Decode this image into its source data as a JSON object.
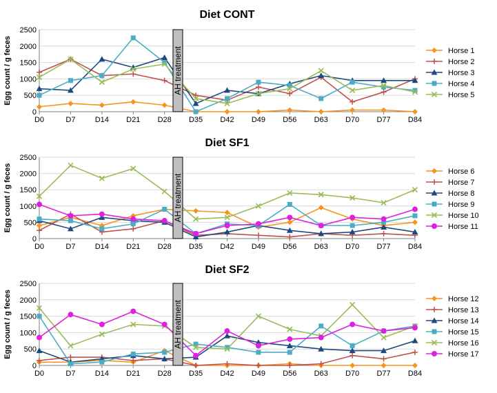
{
  "figure": {
    "treatment_label": "AH treatment",
    "ylabel": "Egg count / g feces"
  },
  "chart_data": [
    {
      "type": "line",
      "title": "Diet CONT",
      "ylabel": "Egg count / g feces",
      "categories": [
        "D0",
        "D7",
        "D14",
        "D21",
        "D28",
        "D35",
        "D42",
        "D49",
        "D56",
        "D63",
        "D70",
        "D77",
        "D84"
      ],
      "ylim": [
        0,
        2500
      ],
      "yticks": [
        0,
        500,
        1000,
        1500,
        2000,
        2500
      ],
      "grid": true,
      "legend": "right",
      "series": [
        {
          "name": "Horse 1",
          "color": "#F7941D",
          "marker": "diamond",
          "values": [
            150,
            250,
            200,
            300,
            200,
            0,
            0,
            0,
            50,
            0,
            50,
            50,
            0
          ]
        },
        {
          "name": "Horse 2",
          "color": "#C0504D",
          "marker": "plus",
          "values": [
            1200,
            1600,
            1100,
            1150,
            950,
            500,
            350,
            750,
            550,
            1050,
            300,
            600,
            1000
          ]
        },
        {
          "name": "Horse 3",
          "color": "#1F497D",
          "marker": "triangle",
          "values": [
            700,
            650,
            1600,
            1350,
            1650,
            250,
            650,
            550,
            850,
            1100,
            950,
            950,
            950
          ]
        },
        {
          "name": "Horse 4",
          "color": "#4BACC6",
          "marker": "square",
          "values": [
            500,
            950,
            1100,
            2250,
            1500,
            0,
            400,
            900,
            800,
            400,
            900,
            750,
            650
          ]
        },
        {
          "name": "Horse 5",
          "color": "#9BBB59",
          "marker": "x",
          "values": [
            1050,
            1600,
            900,
            1300,
            1450,
            400,
            250,
            550,
            700,
            1250,
            650,
            800,
            600
          ]
        }
      ]
    },
    {
      "type": "line",
      "title": "Diet SF1",
      "ylabel": "Egg count / g feces",
      "categories": [
        "D0",
        "D7",
        "D14",
        "D21",
        "D28",
        "D35",
        "D42",
        "D49",
        "D56",
        "D63",
        "D70",
        "D77",
        "D84"
      ],
      "ylim": [
        0,
        2500
      ],
      "yticks": [
        0,
        500,
        1000,
        1500,
        2000,
        2500
      ],
      "grid": true,
      "legend": "right",
      "series": [
        {
          "name": "Horse 6",
          "color": "#F7941D",
          "marker": "diamond",
          "values": [
            400,
            650,
            400,
            700,
            900,
            850,
            800,
            350,
            500,
            950,
            600,
            400,
            500
          ]
        },
        {
          "name": "Horse 7",
          "color": "#C0504D",
          "marker": "plus",
          "values": [
            250,
            750,
            200,
            300,
            550,
            100,
            150,
            100,
            50,
            150,
            100,
            150,
            100
          ]
        },
        {
          "name": "Horse 8",
          "color": "#1F497D",
          "marker": "triangle",
          "values": [
            550,
            300,
            650,
            550,
            500,
            50,
            200,
            400,
            250,
            150,
            200,
            350,
            200
          ]
        },
        {
          "name": "Horse 9",
          "color": "#4BACC6",
          "marker": "square",
          "values": [
            600,
            550,
            300,
            450,
            900,
            150,
            450,
            400,
            1050,
            400,
            400,
            500,
            700
          ]
        },
        {
          "name": "Horse 10",
          "color": "#9BBB59",
          "marker": "x",
          "values": [
            1300,
            2250,
            1850,
            2150,
            1450,
            600,
            650,
            1000,
            1400,
            1350,
            1250,
            1100,
            1500
          ]
        },
        {
          "name": "Horse 11",
          "color": "#E020E0",
          "marker": "circle",
          "values": [
            1050,
            700,
            750,
            600,
            550,
            150,
            400,
            450,
            650,
            400,
            650,
            600,
            900
          ]
        }
      ]
    },
    {
      "type": "line",
      "title": "Diet SF2",
      "ylabel": "Egg count / g feces",
      "categories": [
        "D0",
        "D7",
        "D14",
        "D21",
        "D28",
        "D35",
        "D42",
        "D49",
        "D56",
        "D63",
        "D70",
        "D77",
        "D84"
      ],
      "ylim": [
        0,
        2500
      ],
      "yticks": [
        0,
        500,
        1000,
        1500,
        2000,
        2500
      ],
      "grid": true,
      "legend": "right",
      "series": [
        {
          "name": "Horse 12",
          "color": "#F7941D",
          "marker": "diamond",
          "values": [
            100,
            100,
            150,
            100,
            450,
            0,
            0,
            0,
            50,
            0,
            0,
            0,
            0
          ]
        },
        {
          "name": "Horse 13",
          "color": "#C0504D",
          "marker": "plus",
          "values": [
            150,
            250,
            250,
            150,
            200,
            0,
            50,
            0,
            0,
            50,
            300,
            200,
            400
          ]
        },
        {
          "name": "Horse 14",
          "color": "#1F497D",
          "marker": "triangle",
          "values": [
            450,
            100,
            200,
            300,
            200,
            250,
            900,
            700,
            600,
            500,
            450,
            450,
            750
          ]
        },
        {
          "name": "Horse 15",
          "color": "#4BACC6",
          "marker": "square",
          "values": [
            1500,
            50,
            100,
            350,
            400,
            650,
            550,
            400,
            400,
            1200,
            600,
            1050,
            1200
          ]
        },
        {
          "name": "Horse 16",
          "color": "#9BBB59",
          "marker": "x",
          "values": [
            1750,
            600,
            950,
            1250,
            1200,
            550,
            500,
            1500,
            1100,
            900,
            1850,
            850,
            1200
          ]
        },
        {
          "name": "Horse 17",
          "color": "#E020E0",
          "marker": "circle",
          "values": [
            850,
            1550,
            1250,
            1650,
            1250,
            300,
            1050,
            600,
            800,
            850,
            1250,
            1050,
            1150
          ]
        }
      ]
    }
  ]
}
